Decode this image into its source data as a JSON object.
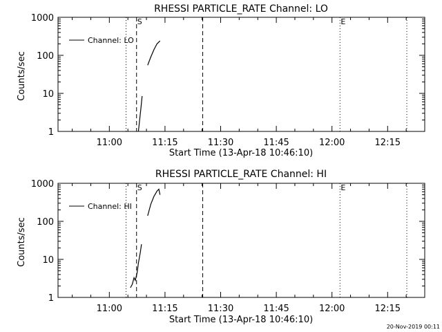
{
  "footer": {
    "timestamp": "20-Nov-2019 00:11"
  },
  "chart_data": [
    {
      "type": "line",
      "title": "RHESSI PARTICLE_RATE Channel: LO",
      "xlabel": "Start Time (13-Apr-18 10:46:10)",
      "ylabel": "Counts/sec",
      "yscale": "log",
      "ylim": [
        1,
        1000
      ],
      "ytick_values": [
        1,
        10,
        100,
        1000
      ],
      "ytick_labels": [
        "1",
        "10",
        "100",
        "1000"
      ],
      "xlim": [
        "10:46:10",
        "12:25:00"
      ],
      "xtick_values": [
        "11:00",
        "11:15",
        "11:30",
        "11:45",
        "12:00",
        "12:15"
      ],
      "xtick_labels": [
        "11:00",
        "11:15",
        "11:30",
        "11:45",
        "12:00",
        "12:15"
      ],
      "legend": {
        "label": "Channel: LO",
        "position": "top-left"
      },
      "markers": [
        {
          "time": "11:04:30",
          "style": "dotted",
          "label": ""
        },
        {
          "time": "11:07:20",
          "style": "dashed",
          "label": "S"
        },
        {
          "time": "11:25:10",
          "style": "dashed",
          "label": ""
        },
        {
          "time": "12:02:10",
          "style": "dotted",
          "label": "E"
        },
        {
          "time": "12:20:10",
          "style": "dotted",
          "label": ""
        }
      ],
      "series": [
        {
          "segments": [
            [
              [
                "11:07:50",
                1.0
              ],
              [
                "11:08:10",
                2.0
              ],
              [
                "11:08:30",
                4.0
              ],
              [
                "11:08:50",
                8.5
              ]
            ],
            [
              [
                "11:10:20",
                55
              ],
              [
                "11:11:10",
                90
              ],
              [
                "11:12:00",
                140
              ],
              [
                "11:12:50",
                200
              ],
              [
                "11:13:40",
                240
              ]
            ]
          ]
        }
      ]
    },
    {
      "type": "line",
      "title": "RHESSI PARTICLE_RATE Channel: HI",
      "xlabel": "Start Time (13-Apr-18 10:46:10)",
      "ylabel": "Counts/sec",
      "yscale": "log",
      "ylim": [
        1,
        1000
      ],
      "ytick_values": [
        1,
        10,
        100,
        1000
      ],
      "ytick_labels": [
        "1",
        "10",
        "100",
        "1000"
      ],
      "xlim": [
        "10:46:10",
        "12:25:00"
      ],
      "xtick_values": [
        "11:00",
        "11:15",
        "11:30",
        "11:45",
        "12:00",
        "12:15"
      ],
      "xtick_labels": [
        "11:00",
        "11:15",
        "11:30",
        "11:45",
        "12:00",
        "12:15"
      ],
      "legend": {
        "label": "Channel: HI",
        "position": "top-left"
      },
      "markers": [
        {
          "time": "11:04:30",
          "style": "dotted",
          "label": ""
        },
        {
          "time": "11:07:20",
          "style": "dashed",
          "label": "S"
        },
        {
          "time": "11:25:10",
          "style": "dashed",
          "label": ""
        },
        {
          "time": "12:02:10",
          "style": "dotted",
          "label": "E"
        },
        {
          "time": "12:20:10",
          "style": "dotted",
          "label": ""
        }
      ],
      "series": [
        {
          "segments": [
            [
              [
                "11:05:40",
                1.8
              ],
              [
                "11:06:10",
                2.2
              ],
              [
                "11:06:40",
                3.3
              ],
              [
                "11:07:00",
                2.8
              ],
              [
                "11:07:30",
                4.5
              ],
              [
                "11:07:50",
                8
              ],
              [
                "11:08:20",
                15
              ],
              [
                "11:08:40",
                25
              ]
            ],
            [
              [
                "11:10:20",
                140
              ],
              [
                "11:11:10",
                280
              ],
              [
                "11:12:00",
                450
              ],
              [
                "11:12:50",
                620
              ],
              [
                "11:13:20",
                700
              ],
              [
                "11:13:40",
                500
              ]
            ]
          ]
        }
      ]
    }
  ]
}
